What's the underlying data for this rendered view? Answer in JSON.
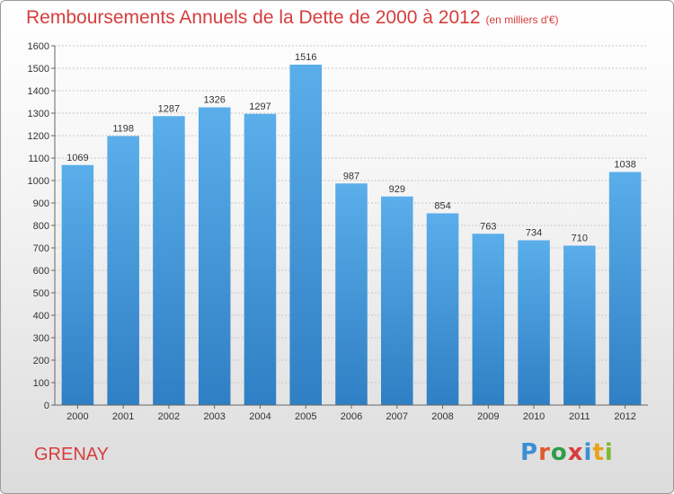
{
  "title": "Remboursements Annuels de la Dette de 2000 à 2012",
  "unit": "(en milliers d'€)",
  "city": "GRENAY",
  "logo": {
    "text": "Proxiti",
    "letter_colors": [
      "#3a8fd6",
      "#e05a2c",
      "#2f9d4a",
      "#d63d3d",
      "#3a8fd6",
      "#e8a21a",
      "#7cba2e"
    ]
  },
  "colors": {
    "title": "#d63d3d",
    "bar_top": "#5aaeea",
    "bar_bottom": "#2f7fc4"
  },
  "chart_data": {
    "type": "bar",
    "title": "Remboursements Annuels de la Dette de 2000 à 2012",
    "subtitle": "(en milliers d'€)",
    "categories": [
      "2000",
      "2001",
      "2002",
      "2003",
      "2004",
      "2005",
      "2006",
      "2007",
      "2008",
      "2009",
      "2010",
      "2011",
      "2012"
    ],
    "values": [
      1069,
      1198,
      1287,
      1326,
      1297,
      1516,
      987,
      929,
      854,
      763,
      734,
      710,
      1038
    ],
    "ylim": [
      0,
      1600
    ],
    "yticks": [
      0,
      100,
      200,
      300,
      400,
      500,
      600,
      700,
      800,
      900,
      1000,
      1100,
      1200,
      1300,
      1400,
      1500,
      1600
    ],
    "grid": true,
    "legend": "none"
  }
}
